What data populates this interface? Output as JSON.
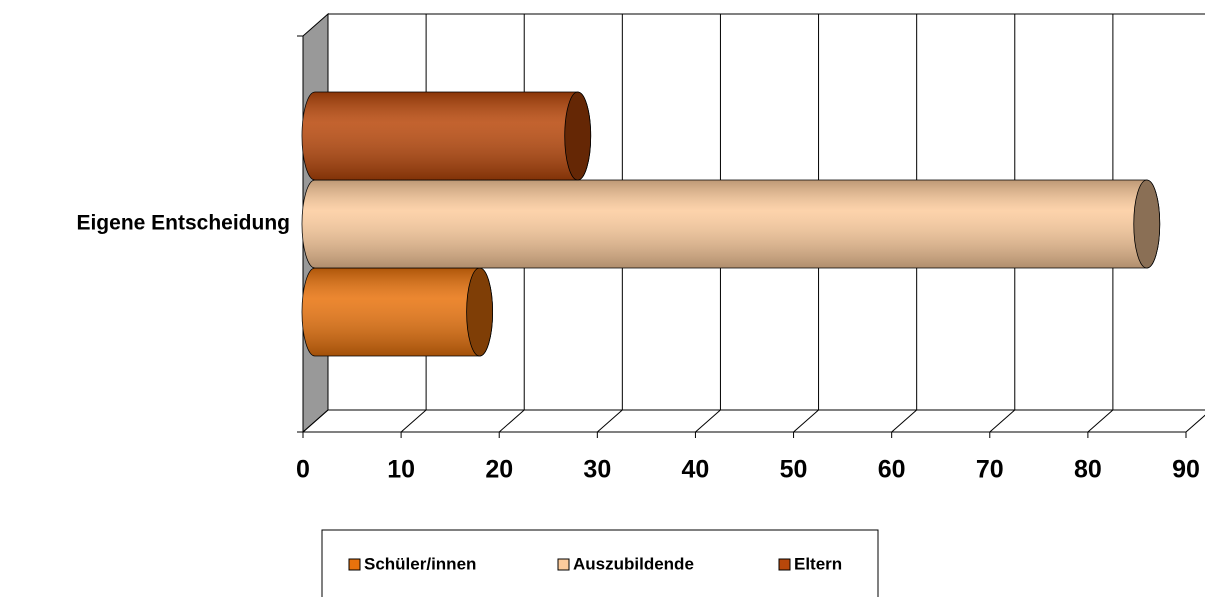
{
  "chart_data": {
    "type": "bar",
    "orientation": "horizontal",
    "categories": [
      "Eigene Entscheidung"
    ],
    "series": [
      {
        "name": "Schüler/innen",
        "color": "#e8720c",
        "values": [
          18
        ]
      },
      {
        "name": "Auszubildende",
        "color": "#fccb9c",
        "values": [
          86
        ]
      },
      {
        "name": "Eltern",
        "color": "#b8470a",
        "values": [
          28
        ]
      }
    ],
    "xlim": [
      0,
      90
    ],
    "xticks": [
      0,
      10,
      20,
      30,
      40,
      50,
      60,
      70,
      80,
      90
    ],
    "grid": true,
    "legend": "bottom"
  }
}
